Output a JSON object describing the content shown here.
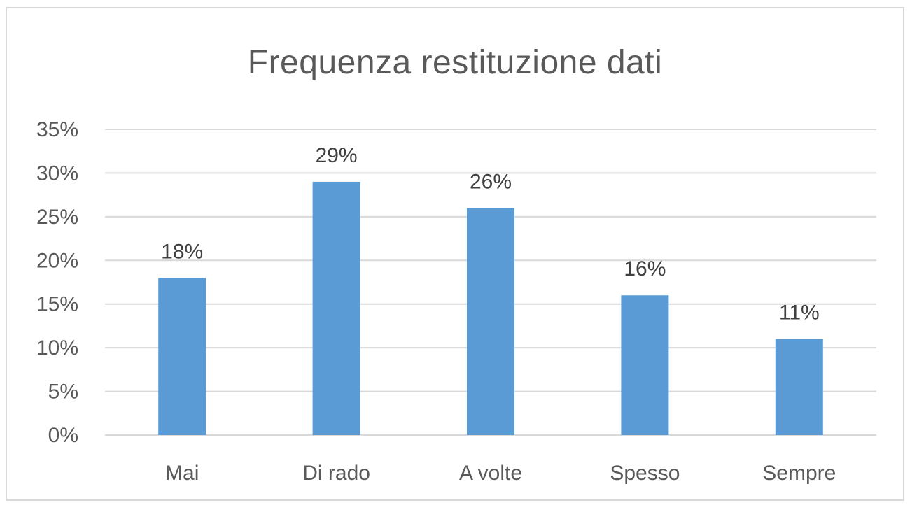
{
  "chart_data": {
    "type": "bar",
    "title": "Frequenza restituzione dati",
    "categories": [
      "Mai",
      "Di rado",
      "A volte",
      "Spesso",
      "Sempre"
    ],
    "values": [
      18,
      29,
      26,
      16,
      11
    ],
    "data_labels": [
      "18%",
      "29%",
      "26%",
      "16%",
      "11%"
    ],
    "ylim": [
      0,
      35
    ],
    "yticks": [
      0,
      5,
      10,
      15,
      20,
      25,
      30,
      35
    ],
    "ytick_labels": [
      "0%",
      "5%",
      "10%",
      "15%",
      "20%",
      "25%",
      "30%",
      "35%"
    ],
    "xlabel": "",
    "ylabel": "",
    "grid": true,
    "legend": "none",
    "bar_color": "#5b9bd5",
    "grid_color": "#d9d9d9"
  }
}
